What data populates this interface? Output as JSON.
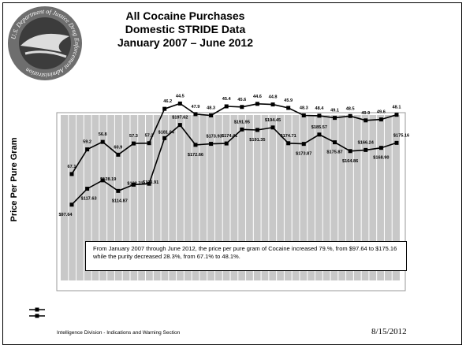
{
  "slide": {
    "title_lines": [
      "All Cocaine Purchases",
      "Domestic STRIDE Data",
      "January 2007 – June 2012"
    ],
    "seal_text": "U.S. Department of Justice Drug Enforcement Administration",
    "ylabel": "Price Per Pure Gram",
    "note": "From January 2007 through June 2012, the price per pure gram of Cocaine increased 79.%, from $97.64 to $175.16 while the purity decreased 28.3%, from 67.1% to 48.1%.",
    "footer_left": "Intelligence Division - Indications and Warning Section",
    "footer_right": "8/15/2012"
  },
  "colors": {
    "plot_area": "#c8c8c8",
    "grid": "#ffffff",
    "line": "#000000",
    "seal_outer": "#6e6e6e",
    "seal_inner": "#3c3c3c"
  },
  "chart_data": {
    "type": "line",
    "title": "",
    "xlabel": "",
    "ylabel": "Price Per Pure Gram",
    "grid": true,
    "series": [
      {
        "name": "",
        "values": [
          97.64,
          117.63,
          128.19,
          114.87,
          122.72,
          123.91,
          181.04,
          197.62,
          172.66,
          173.93,
          174.41,
          191.95,
          191.35,
          194.45,
          174.71,
          173.87,
          185.57,
          175.87,
          164.86,
          166.24,
          168.9,
          175.16
        ],
        "labels": [
          "$97.64",
          "$117.63",
          "$128.19",
          "$114.87",
          "$122.72",
          "$123.91",
          "$181.04",
          "$197.62",
          "$172.66",
          "$173.93",
          "$174.41",
          "$191.95",
          "$191.35",
          "$194.45",
          "$174.71",
          "$173.87",
          "$185.57",
          "$175.87",
          "$164.86",
          "$166.24",
          "$168.90",
          "$175.16"
        ]
      },
      {
        "name": "",
        "values": [
          67.1,
          59.2,
          56.8,
          60.9,
          57.3,
          57.2,
          46.2,
          44.5,
          47.9,
          48.3,
          45.4,
          45.6,
          44.6,
          44.8,
          45.9,
          48.3,
          48.4,
          49.1,
          48.5,
          49.9,
          49.6,
          48.1
        ],
        "labels": [
          "67.1",
          "59.2",
          "56.8",
          "60.9",
          "57.3",
          "57.2",
          "46.2",
          "44.5",
          "47.9",
          "48.3",
          "45.4",
          "45.6",
          "44.6",
          "44.8",
          "45.9",
          "48.3",
          "48.4",
          "49.1",
          "48.5",
          "49.9",
          "49.6",
          "48.1"
        ]
      }
    ]
  }
}
